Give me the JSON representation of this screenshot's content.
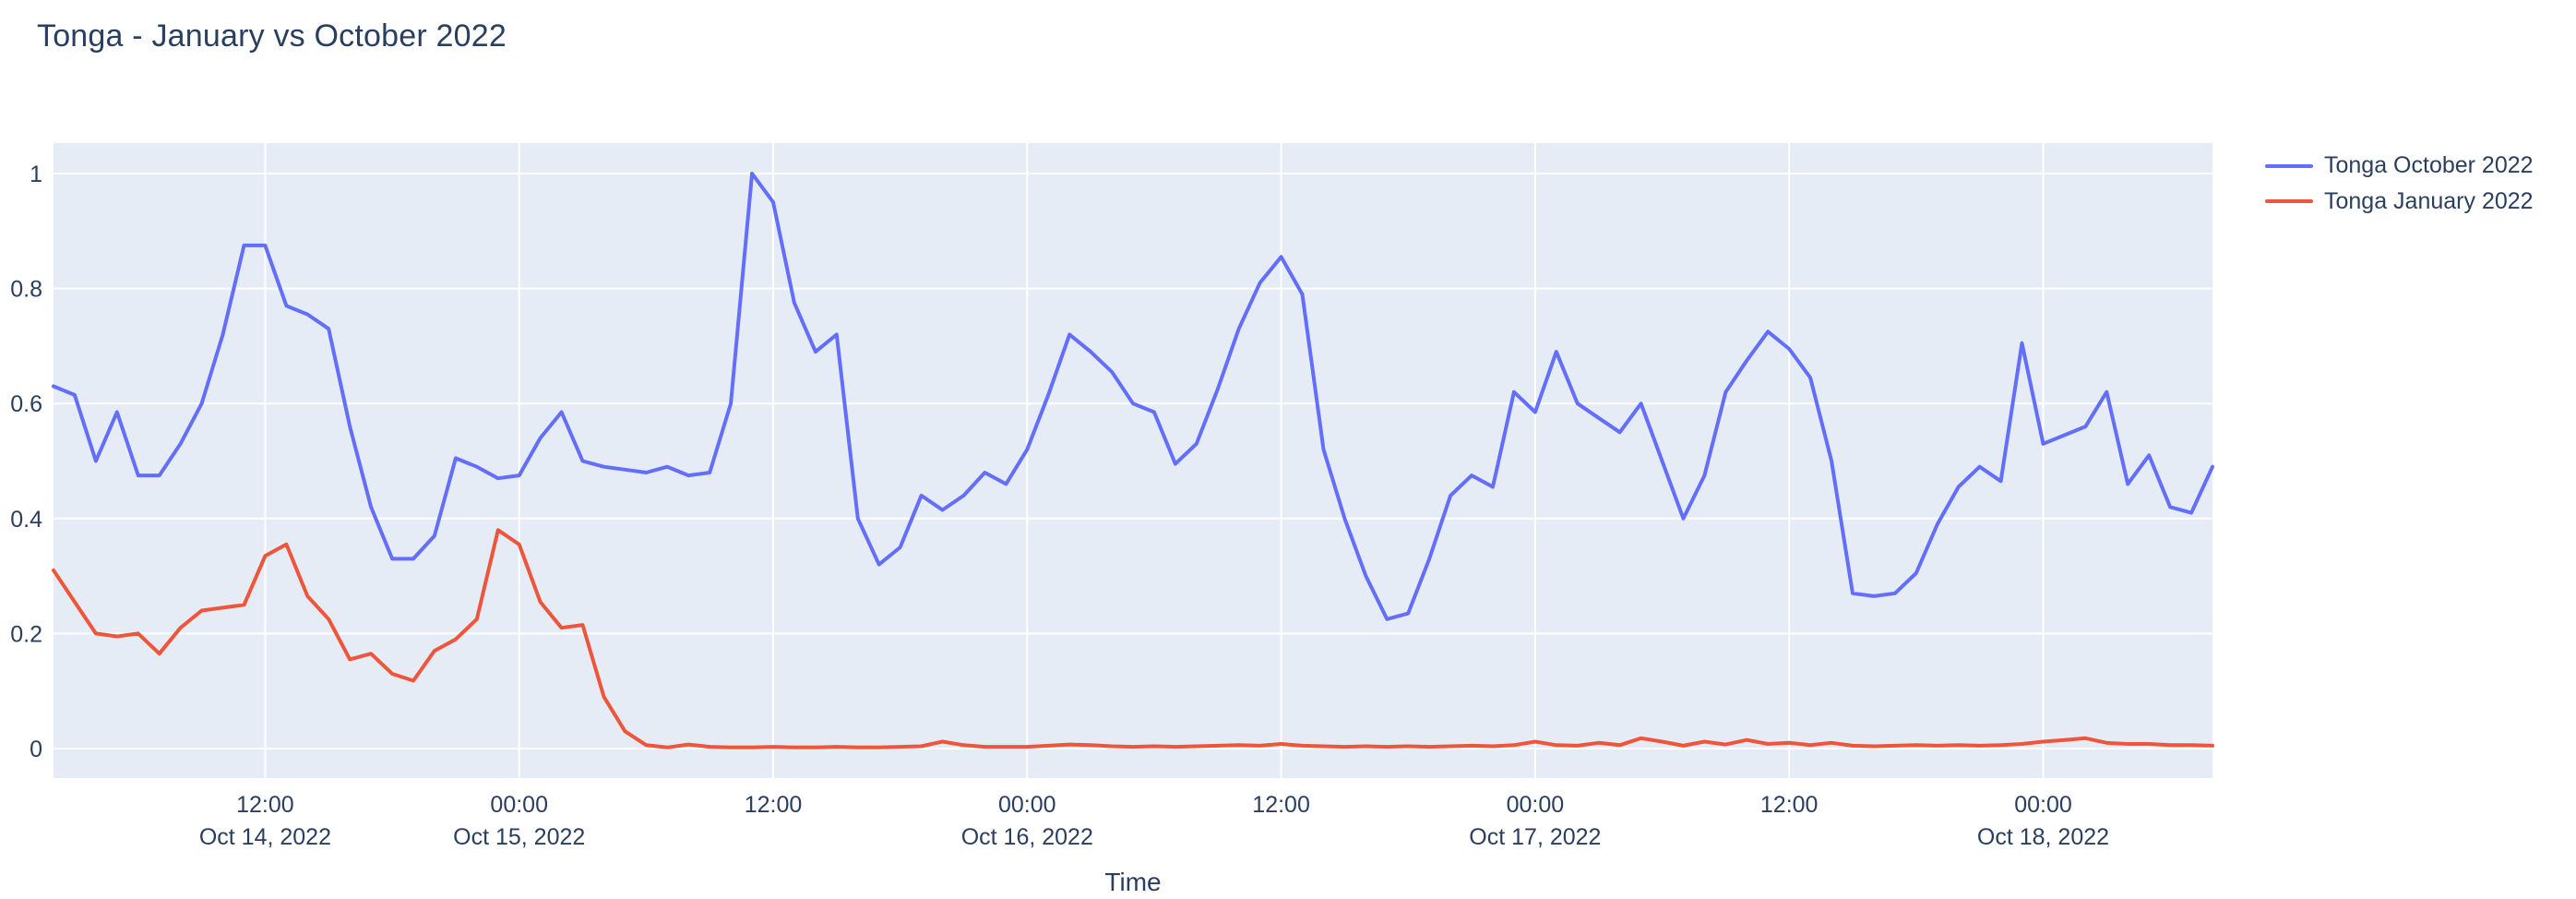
{
  "title": "Tonga - January vs October 2022",
  "colors": {
    "plot_background": "#E5ECF6",
    "figure_background": "#ffffff",
    "gridline": "#ffffff",
    "text": "#2a3f5f",
    "series_october": "#636EFA",
    "series_january": "#EF553B"
  },
  "legend": {
    "items": [
      {
        "label": "Tonga October 2022",
        "color": "#636EFA"
      },
      {
        "label": "Tonga January 2022",
        "color": "#EF553B"
      }
    ]
  },
  "chart_data": {
    "type": "line",
    "title": "Tonga - January vs October 2022",
    "xlabel": "Time",
    "ylabel": "",
    "x_start": "2022-10-14 02:00",
    "x_step_hours": 1,
    "x_total_hours": 102,
    "ylim": [
      -0.05,
      1.05
    ],
    "grid": true,
    "legend_position": "right",
    "yticks": [
      {
        "v": 0,
        "label": "0"
      },
      {
        "v": 0.2,
        "label": "0.2"
      },
      {
        "v": 0.4,
        "label": "0.4"
      },
      {
        "v": 0.6,
        "label": "0.6"
      },
      {
        "v": 0.8,
        "label": "0.8"
      },
      {
        "v": 1,
        "label": "1"
      }
    ],
    "xticks": [
      {
        "hours": 10,
        "time_label": "12:00",
        "date_label": "Oct 14, 2022"
      },
      {
        "hours": 22,
        "time_label": "00:00",
        "date_label": "Oct 15, 2022"
      },
      {
        "hours": 34,
        "time_label": "12:00",
        "date_label": ""
      },
      {
        "hours": 46,
        "time_label": "00:00",
        "date_label": "Oct 16, 2022"
      },
      {
        "hours": 58,
        "time_label": "12:00",
        "date_label": ""
      },
      {
        "hours": 70,
        "time_label": "00:00",
        "date_label": "Oct 17, 2022"
      },
      {
        "hours": 82,
        "time_label": "12:00",
        "date_label": ""
      },
      {
        "hours": 94,
        "time_label": "00:00",
        "date_label": "Oct 18, 2022"
      }
    ],
    "series": [
      {
        "name": "Tonga October 2022",
        "color": "#636EFA",
        "values": [
          0.63,
          0.615,
          0.5,
          0.585,
          0.475,
          0.475,
          0.53,
          0.6,
          0.72,
          0.875,
          0.875,
          0.77,
          0.755,
          0.73,
          0.56,
          0.42,
          0.33,
          0.33,
          0.37,
          0.505,
          0.49,
          0.47,
          0.475,
          0.54,
          0.585,
          0.5,
          0.49,
          0.485,
          0.48,
          0.49,
          0.475,
          0.48,
          0.6,
          1.0,
          0.95,
          0.775,
          0.69,
          0.72,
          0.4,
          0.32,
          0.35,
          0.44,
          0.415,
          0.44,
          0.48,
          0.46,
          0.52,
          0.615,
          0.72,
          0.69,
          0.655,
          0.6,
          0.585,
          0.495,
          0.53,
          0.625,
          0.73,
          0.81,
          0.855,
          0.79,
          0.52,
          0.4,
          0.3,
          0.225,
          0.235,
          0.33,
          0.44,
          0.475,
          0.455,
          0.62,
          0.585,
          0.69,
          0.6,
          0.575,
          0.55,
          0.6,
          0.5,
          0.4,
          0.475,
          0.62,
          0.675,
          0.725,
          0.695,
          0.645,
          0.5,
          0.27,
          0.265,
          0.27,
          0.305,
          0.39,
          0.455,
          0.49,
          0.465,
          0.705,
          0.53,
          0.545,
          0.56,
          0.62,
          0.46,
          0.51,
          0.42,
          0.41,
          0.49
        ]
      },
      {
        "name": "Tonga January 2022",
        "color": "#EF553B",
        "values": [
          0.31,
          0.255,
          0.2,
          0.195,
          0.2,
          0.165,
          0.21,
          0.24,
          0.245,
          0.25,
          0.335,
          0.355,
          0.265,
          0.225,
          0.155,
          0.165,
          0.13,
          0.118,
          0.17,
          0.19,
          0.225,
          0.38,
          0.355,
          0.255,
          0.21,
          0.215,
          0.09,
          0.03,
          0.006,
          0.002,
          0.007,
          0.003,
          0.002,
          0.002,
          0.003,
          0.002,
          0.002,
          0.003,
          0.002,
          0.002,
          0.003,
          0.004,
          0.012,
          0.006,
          0.003,
          0.003,
          0.003,
          0.005,
          0.007,
          0.006,
          0.004,
          0.003,
          0.004,
          0.003,
          0.004,
          0.005,
          0.006,
          0.005,
          0.008,
          0.005,
          0.004,
          0.003,
          0.004,
          0.003,
          0.004,
          0.003,
          0.004,
          0.005,
          0.004,
          0.006,
          0.012,
          0.006,
          0.005,
          0.01,
          0.006,
          0.018,
          0.012,
          0.005,
          0.012,
          0.007,
          0.015,
          0.008,
          0.01,
          0.006,
          0.01,
          0.005,
          0.004,
          0.005,
          0.006,
          0.005,
          0.006,
          0.005,
          0.006,
          0.008,
          0.012,
          0.015,
          0.018,
          0.01,
          0.008,
          0.008,
          0.006,
          0.006,
          0.005
        ]
      }
    ]
  }
}
